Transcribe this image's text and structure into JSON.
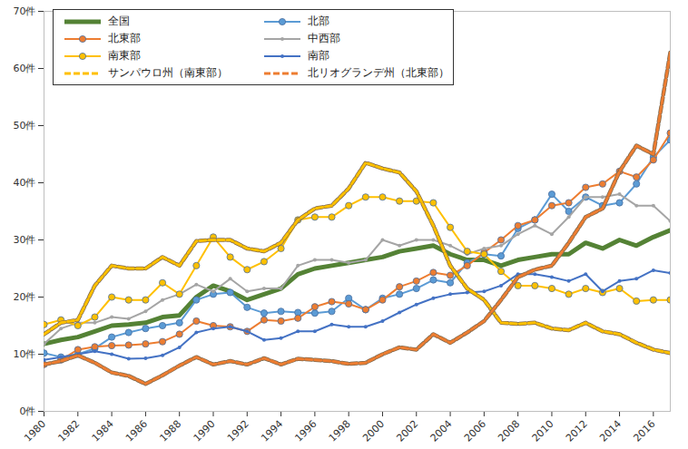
{
  "chart_data": {
    "type": "line",
    "x": [
      1980,
      1981,
      1982,
      1983,
      1984,
      1985,
      1986,
      1987,
      1988,
      1989,
      1990,
      1991,
      1992,
      1993,
      1994,
      1995,
      1996,
      1997,
      1998,
      1999,
      2000,
      2001,
      2002,
      2003,
      2004,
      2005,
      2006,
      2007,
      2008,
      2009,
      2010,
      2011,
      2012,
      2013,
      2014,
      2015,
      2016,
      2017
    ],
    "xlim": [
      1980,
      2017
    ],
    "xticks": [
      1980,
      1982,
      1984,
      1986,
      1988,
      1990,
      1992,
      1994,
      1996,
      1998,
      2000,
      2002,
      2004,
      2006,
      2008,
      2010,
      2012,
      2014,
      2016
    ],
    "ylim": [
      0,
      70
    ],
    "yticks": [
      {
        "value": 0,
        "label": "0件"
      },
      {
        "value": 10,
        "label": "10件"
      },
      {
        "value": 20,
        "label": "20件"
      },
      {
        "value": 30,
        "label": "30件"
      },
      {
        "value": 40,
        "label": "40件"
      },
      {
        "value": 50,
        "label": "50件"
      },
      {
        "value": 60,
        "label": "60件"
      },
      {
        "value": 70,
        "label": "70件"
      }
    ],
    "grid": false,
    "legend": "top-left",
    "series": [
      {
        "name": "全国",
        "color": "#548235",
        "marker": "none",
        "line_style": "solid",
        "values": [
          11.8,
          12.5,
          13,
          14,
          15,
          15.2,
          15.5,
          16.5,
          16.8,
          20,
          22,
          21,
          19.5,
          20.5,
          21.5,
          24,
          25,
          25.5,
          26,
          26.5,
          27,
          28,
          28.5,
          29,
          27.5,
          26.5,
          26.5,
          25.5,
          26.5,
          27,
          27.5,
          27.5,
          29.5,
          28.5,
          30,
          29,
          30.5,
          31.7
        ]
      },
      {
        "name": "北部",
        "color": "#5b9bd5",
        "marker": "circle",
        "line_style": "solid",
        "values": [
          10.2,
          9.5,
          10,
          11,
          13,
          13.8,
          14.5,
          15,
          15.5,
          19.5,
          20.5,
          20.8,
          18.2,
          17.2,
          17.5,
          17.3,
          17.2,
          17.5,
          19.8,
          17.8,
          19.8,
          20.5,
          21.5,
          23,
          22.5,
          26,
          27.5,
          27.2,
          32,
          33.5,
          38,
          35,
          37.5,
          36,
          36.5,
          39.8,
          44.5,
          47.5
        ]
      },
      {
        "name": "北東部",
        "color": "#ed7d31",
        "marker": "circle",
        "line_style": "solid",
        "values": [
          8.2,
          9,
          10.8,
          11.3,
          11.5,
          11.6,
          11.8,
          12.2,
          13.5,
          15.8,
          15,
          14.8,
          14,
          16,
          15.8,
          16.3,
          18.3,
          19.2,
          18.8,
          17.8,
          19.5,
          21.8,
          22.8,
          24.3,
          23.8,
          25.5,
          27.8,
          30,
          32.5,
          33.5,
          36,
          36.5,
          39.2,
          39.8,
          42,
          41,
          44,
          48.7
        ]
      },
      {
        "name": "中西部",
        "color": "#a5a5a5",
        "marker": "dot",
        "line_style": "solid",
        "values": [
          11.8,
          14.5,
          15.5,
          15.5,
          16.5,
          16.2,
          17.5,
          19.5,
          20.5,
          22.2,
          21,
          23.2,
          21,
          21.5,
          21.5,
          25.5,
          26.5,
          26.5,
          26,
          26.5,
          30,
          29,
          30,
          30,
          29,
          27.5,
          28.5,
          29,
          31,
          32.5,
          31,
          34,
          37.5,
          37.5,
          38,
          36,
          36,
          33.3
        ]
      },
      {
        "name": "南東部",
        "color": "#ffc000",
        "marker": "circle",
        "line_style": "solid",
        "values": [
          15.2,
          16,
          15,
          16.5,
          20,
          19.5,
          19.5,
          22.5,
          20.5,
          25.5,
          30.5,
          27,
          24.8,
          26.2,
          28.5,
          33.5,
          34,
          34,
          36,
          37.5,
          37.5,
          36.8,
          36.8,
          36.5,
          32.2,
          28,
          27.5,
          24.5,
          22,
          22,
          21.5,
          20.5,
          21.5,
          20.8,
          21.5,
          19.3,
          19.5,
          19.5
        ]
      },
      {
        "name": "南部",
        "color": "#4472c4",
        "marker": "dot",
        "line_style": "solid",
        "values": [
          9,
          9.5,
          10,
          10.5,
          10,
          9.2,
          9.3,
          9.8,
          11.2,
          13.8,
          14.5,
          14.8,
          14,
          12.5,
          12.8,
          14,
          14,
          15.2,
          14.8,
          14.8,
          15.8,
          17.3,
          18.7,
          19.8,
          20.5,
          20.8,
          21,
          22,
          24,
          24,
          23.5,
          22.8,
          24,
          21,
          22.8,
          23.2,
          24.7,
          24.2
        ]
      },
      {
        "name": "サンパウロ州（南東部）",
        "color": "#ffc000",
        "marker": "none",
        "line_style": "dashed",
        "values": [
          13.5,
          15.5,
          16,
          22,
          25.5,
          25,
          25,
          27,
          25.5,
          29.8,
          30,
          30,
          28.5,
          28,
          29.5,
          33.5,
          35.5,
          36,
          39,
          43.5,
          42.5,
          41.8,
          38.5,
          32.5,
          25.5,
          21.5,
          19.5,
          15.5,
          15.3,
          15.5,
          14.5,
          14.2,
          15.5,
          14,
          13.5,
          12,
          10.8,
          10.2
        ]
      },
      {
        "name": "北リオグランデ州（北東部）",
        "color": "#ed7d31",
        "marker": "none",
        "line_style": "dashed",
        "values": [
          8.2,
          8.8,
          9.8,
          8.5,
          6.8,
          6.2,
          4.8,
          6.3,
          8,
          9.5,
          8.2,
          8.8,
          8.2,
          9.3,
          8.2,
          9.2,
          9,
          8.8,
          8.3,
          8.5,
          10,
          11.2,
          10.8,
          13.5,
          12,
          13.8,
          15.8,
          19.5,
          23.5,
          24.8,
          25.5,
          29.5,
          34,
          35.5,
          42,
          46.5,
          45,
          62.8
        ]
      }
    ]
  }
}
